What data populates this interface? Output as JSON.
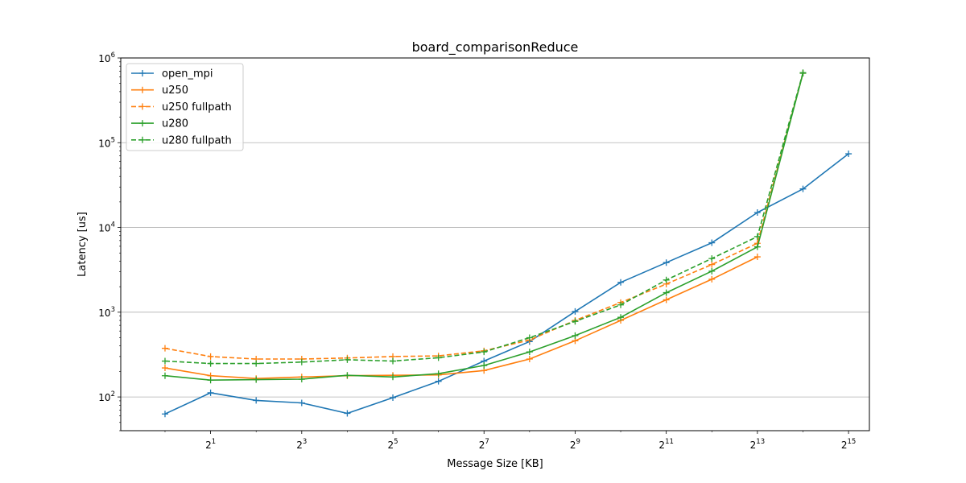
{
  "chart_data": {
    "type": "line",
    "title": "board_comparisonReduce",
    "xlabel": "Message Size [KB]",
    "ylabel": "Latency [us]",
    "x_scale": "log2",
    "y_scale": "log10",
    "xlim": [
      0.51,
      45000
    ],
    "ylim": [
      40,
      1000000
    ],
    "x_ticks": [
      {
        "value": 2,
        "base": "2",
        "exp": "1"
      },
      {
        "value": 8,
        "base": "2",
        "exp": "3"
      },
      {
        "value": 32,
        "base": "2",
        "exp": "5"
      },
      {
        "value": 128,
        "base": "2",
        "exp": "7"
      },
      {
        "value": 512,
        "base": "2",
        "exp": "9"
      },
      {
        "value": 2048,
        "base": "2",
        "exp": "11"
      },
      {
        "value": 8192,
        "base": "2",
        "exp": "13"
      },
      {
        "value": 32768,
        "base": "2",
        "exp": "15"
      }
    ],
    "y_ticks": [
      {
        "value": 100,
        "base": "10",
        "exp": "2"
      },
      {
        "value": 1000,
        "base": "10",
        "exp": "3"
      },
      {
        "value": 10000,
        "base": "10",
        "exp": "4"
      },
      {
        "value": 100000,
        "base": "10",
        "exp": "5"
      },
      {
        "value": 1000000,
        "base": "10",
        "exp": "6"
      }
    ],
    "grid": "horizontal",
    "legend_position": "top-left",
    "x": [
      1,
      2,
      4,
      8,
      16,
      32,
      64,
      128,
      256,
      512,
      1024,
      2048,
      4096,
      8192,
      16384,
      32768
    ],
    "series": [
      {
        "name": "open_mpi",
        "color": "#1f77b4",
        "style": "solid",
        "values": [
          63,
          112,
          91,
          85,
          64,
          98,
          153,
          265,
          450,
          1020,
          2250,
          3850,
          6600,
          15000,
          28500,
          74000
        ]
      },
      {
        "name": "u250",
        "color": "#ff7f0e",
        "style": "solid",
        "values": [
          220,
          178,
          165,
          172,
          178,
          180,
          182,
          205,
          280,
          460,
          800,
          1400,
          2450,
          4500,
          null,
          null
        ]
      },
      {
        "name": "u250 fullpath",
        "color": "#ff7f0e",
        "style": "dashed",
        "values": [
          375,
          300,
          280,
          280,
          288,
          300,
          305,
          350,
          470,
          800,
          1300,
          2150,
          3650,
          6500,
          660000,
          null
        ]
      },
      {
        "name": "u280",
        "color": "#2ca02c",
        "style": "solid",
        "values": [
          178,
          158,
          160,
          162,
          180,
          172,
          188,
          235,
          340,
          530,
          870,
          1700,
          3050,
          5900,
          660000,
          null
        ]
      },
      {
        "name": "u280 fullpath",
        "color": "#2ca02c",
        "style": "dashed",
        "values": [
          265,
          248,
          248,
          258,
          275,
          265,
          290,
          340,
          500,
          780,
          1220,
          2400,
          4300,
          7800,
          670000,
          null
        ]
      }
    ]
  }
}
